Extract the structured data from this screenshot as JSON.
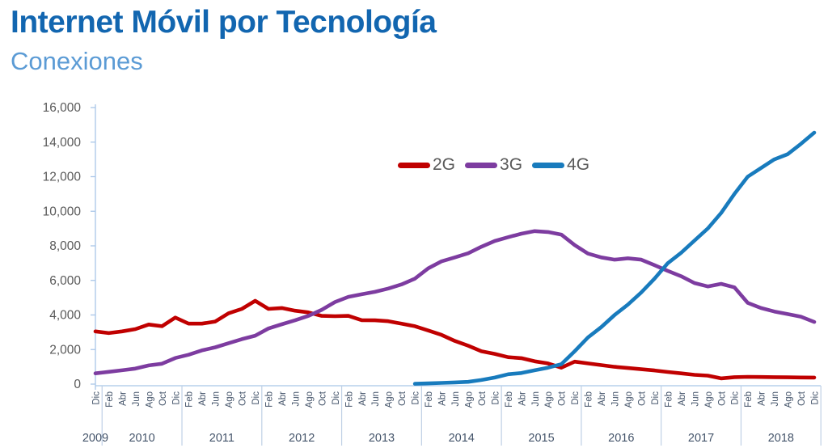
{
  "header": {
    "title": "Internet Móvil por Tecnología",
    "subtitle": "Conexiones"
  },
  "colors": {
    "title": "#1266B0",
    "subtitle": "#5B9BD5",
    "axis_line": "#A9C6E8",
    "separator_line": "#BFD0E5",
    "y_label": "#595959",
    "x_label": "#44546A",
    "legend_text": "#595959"
  },
  "chart_data": {
    "type": "line",
    "title": "Internet Móvil por Tecnología",
    "subtitle": "Conexiones",
    "xlabel": "",
    "ylabel": "",
    "ylim": [
      0,
      16000
    ],
    "ytick_step": 2000,
    "y_tick_labels": [
      "0",
      "2,000",
      "4,000",
      "6,000",
      "8,000",
      "10,000",
      "12,000",
      "14,000",
      "16,000"
    ],
    "grid": false,
    "legend_position": "top-center",
    "x_month_labels": [
      "Dic",
      "Feb",
      "Abr",
      "Jun",
      "Ago",
      "Oct",
      "Dic",
      "Feb",
      "Abr",
      "Jun",
      "Ago",
      "Oct",
      "Dic",
      "Feb",
      "Abr",
      "Jun",
      "Ago",
      "Oct",
      "Dic",
      "Feb",
      "Abr",
      "Jun",
      "Ago",
      "Oct",
      "Dic",
      "Feb",
      "Abr",
      "Jun",
      "Ago",
      "Oct",
      "Dic",
      "Feb",
      "Abr",
      "Jun",
      "Ago",
      "Oct",
      "Dic",
      "Feb",
      "Abr",
      "Jun",
      "Ago",
      "Oct",
      "Dic",
      "Feb",
      "Abr",
      "Jun",
      "Ago",
      "Oct",
      "Dic",
      "Feb",
      "Abr",
      "Jun",
      "Ago",
      "Oct",
      "Dic"
    ],
    "x_year_groups": [
      {
        "label": "2009",
        "from": 0,
        "to": 0
      },
      {
        "label": "2010",
        "from": 1,
        "to": 6
      },
      {
        "label": "2011",
        "from": 7,
        "to": 12
      },
      {
        "label": "2012",
        "from": 13,
        "to": 18
      },
      {
        "label": "2013",
        "from": 19,
        "to": 24
      },
      {
        "label": "2014",
        "from": 25,
        "to": 30
      },
      {
        "label": "2015",
        "from": 31,
        "to": 36
      },
      {
        "label": "2016",
        "from": 37,
        "to": 42
      },
      {
        "label": "2017",
        "from": 43,
        "to": 48
      },
      {
        "label": "2018",
        "from": 49,
        "to": 54
      }
    ],
    "series": [
      {
        "name": "2G",
        "color": "#C00000",
        "values": [
          3050,
          2950,
          3050,
          3180,
          3450,
          3350,
          3850,
          3500,
          3500,
          3620,
          4100,
          4350,
          4820,
          4350,
          4400,
          4250,
          4150,
          3950,
          3930,
          3950,
          3700,
          3690,
          3640,
          3500,
          3350,
          3100,
          2850,
          2500,
          2220,
          1900,
          1750,
          1560,
          1500,
          1320,
          1200,
          950,
          1300,
          1200,
          1100,
          1000,
          930,
          860,
          790,
          700,
          620,
          540,
          490,
          330,
          400,
          420,
          410,
          400,
          395,
          385,
          380
        ]
      },
      {
        "name": "3G",
        "color": "#7D3CA0",
        "values": [
          620,
          710,
          800,
          900,
          1080,
          1180,
          1510,
          1700,
          1950,
          2130,
          2365,
          2600,
          2800,
          3220,
          3460,
          3690,
          3950,
          4300,
          4750,
          5050,
          5200,
          5340,
          5530,
          5770,
          6100,
          6700,
          7100,
          7330,
          7570,
          7950,
          8280,
          8500,
          8700,
          8850,
          8800,
          8650,
          8040,
          7550,
          7330,
          7200,
          7280,
          7200,
          6880,
          6550,
          6240,
          5850,
          5650,
          5800,
          5600,
          4700,
          4400,
          4200,
          4050,
          3900,
          3600
        ]
      },
      {
        "name": "4G",
        "color": "#187BBD",
        "values": [
          null,
          null,
          null,
          null,
          null,
          null,
          null,
          null,
          null,
          null,
          null,
          null,
          null,
          null,
          null,
          null,
          null,
          null,
          null,
          null,
          null,
          null,
          null,
          null,
          20,
          40,
          70,
          100,
          130,
          240,
          380,
          570,
          640,
          800,
          950,
          1150,
          1900,
          2700,
          3300,
          4000,
          4600,
          5300,
          6100,
          7000,
          7600,
          8300,
          9000,
          9900,
          11000,
          12000,
          12500,
          13000,
          13300,
          13900,
          14550
        ]
      }
    ]
  }
}
